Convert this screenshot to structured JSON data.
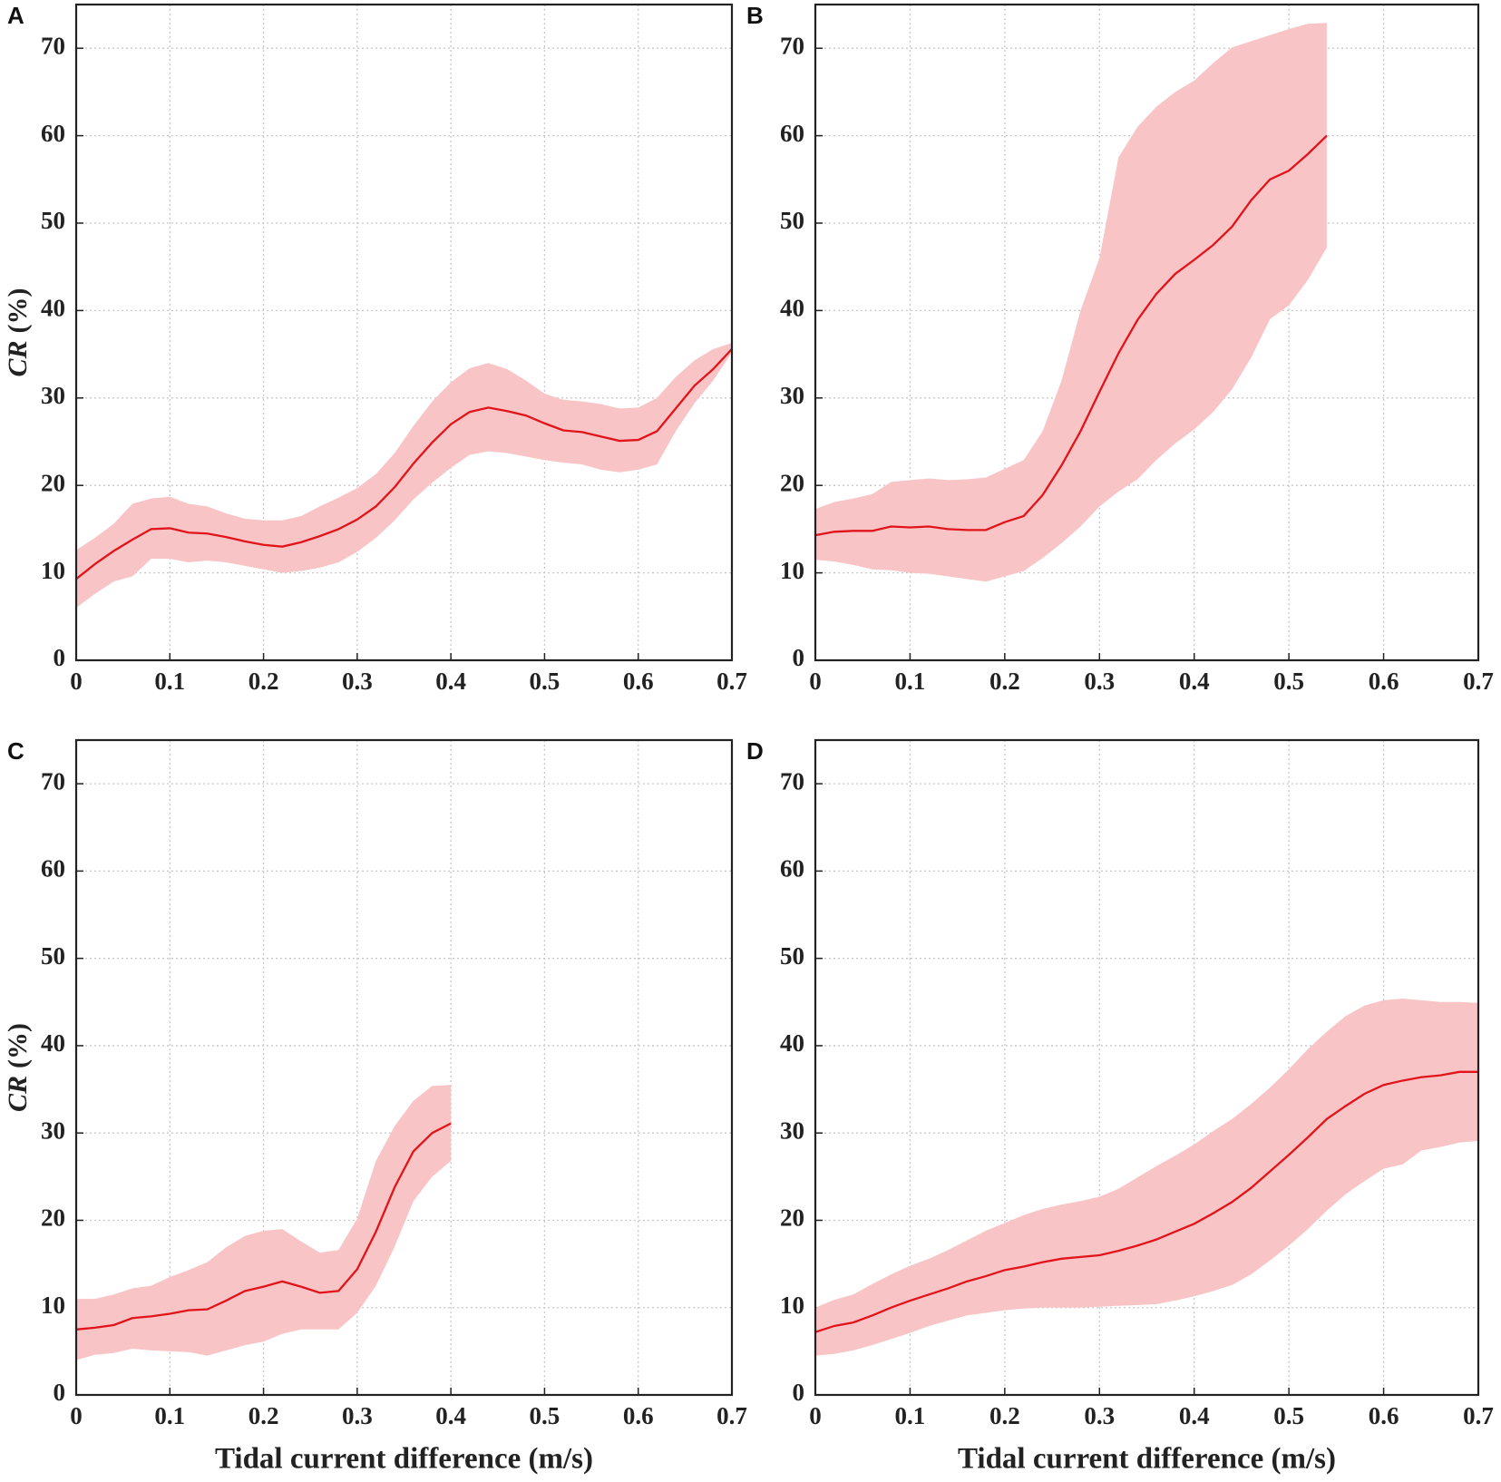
{
  "chart_data": [
    {
      "type": "line",
      "panel": "A",
      "ylabel": [
        "CR",
        "(%)"
      ],
      "xlim": [
        0,
        0.7
      ],
      "ylim": [
        0,
        75
      ],
      "xticks": [
        0,
        0.1,
        0.2,
        0.3,
        0.4,
        0.5,
        0.6,
        0.7
      ],
      "yticks": [
        0,
        10,
        20,
        30,
        40,
        50,
        60,
        70
      ],
      "grid": true,
      "x": [
        0,
        0.02,
        0.04,
        0.06,
        0.08,
        0.1,
        0.12,
        0.14,
        0.16,
        0.18,
        0.2,
        0.22,
        0.24,
        0.26,
        0.28,
        0.3,
        0.32,
        0.34,
        0.36,
        0.38,
        0.4,
        0.42,
        0.44,
        0.46,
        0.48,
        0.5,
        0.52,
        0.54,
        0.56,
        0.58,
        0.6,
        0.62,
        0.64,
        0.66,
        0.68,
        0.7
      ],
      "series": [
        {
          "color": "#e0141a",
          "band_color": "#f9c4c6",
          "values": [
            9.3,
            11,
            12.5,
            13.8,
            15,
            15.1,
            14.6,
            14.5,
            14.1,
            13.6,
            13.2,
            13,
            13.5,
            14.2,
            15,
            16.1,
            17.6,
            19.8,
            22.5,
            24.9,
            27,
            28.4,
            28.9,
            28.5,
            28,
            27.1,
            26.3,
            26.1,
            25.6,
            25.1,
            25.2,
            26.2,
            28.8,
            31.4,
            33.3,
            35.6
          ],
          "upper": [
            12.6,
            14,
            15.6,
            17.9,
            18.5,
            18.7,
            17.9,
            17.6,
            16.8,
            16.2,
            16,
            16,
            16.5,
            17.6,
            18.6,
            19.7,
            21.3,
            23.7,
            26.8,
            29.6,
            31.8,
            33.4,
            34,
            33.3,
            32,
            30.5,
            29.8,
            29.6,
            29.3,
            28.8,
            28.9,
            30,
            32.4,
            34.3,
            35.6,
            36.3
          ],
          "lower": [
            6,
            7.6,
            9,
            9.6,
            11.6,
            11.6,
            11.2,
            11.4,
            11.2,
            10.8,
            10.4,
            10,
            10.2,
            10.6,
            11.2,
            12.4,
            14,
            16,
            18.4,
            20.3,
            22,
            23.5,
            23.9,
            23.7,
            23.3,
            22.9,
            22.6,
            22.4,
            21.8,
            21.5,
            21.8,
            22.4,
            26.2,
            29.4,
            32,
            35.2
          ]
        }
      ]
    },
    {
      "type": "line",
      "panel": "B",
      "xlim": [
        0,
        0.7
      ],
      "ylim": [
        0,
        75
      ],
      "xticks": [
        0,
        0.1,
        0.2,
        0.3,
        0.4,
        0.5,
        0.6,
        0.7
      ],
      "yticks": [
        0,
        10,
        20,
        30,
        40,
        50,
        60,
        70
      ],
      "grid": true,
      "x": [
        0,
        0.02,
        0.04,
        0.06,
        0.08,
        0.1,
        0.12,
        0.14,
        0.16,
        0.18,
        0.2,
        0.22,
        0.24,
        0.26,
        0.28,
        0.3,
        0.32,
        0.34,
        0.36,
        0.38,
        0.4,
        0.42,
        0.44,
        0.46,
        0.48,
        0.5,
        0.52,
        0.54
      ],
      "series": [
        {
          "color": "#e0141a",
          "band_color": "#f9c4c6",
          "values": [
            14.3,
            14.7,
            14.8,
            14.8,
            15.3,
            15.2,
            15.3,
            15,
            14.9,
            14.9,
            15.8,
            16.5,
            18.9,
            22.3,
            26.2,
            30.7,
            35.1,
            38.9,
            41.9,
            44.2,
            45.8,
            47.5,
            49.6,
            52.6,
            55,
            56,
            57.9,
            60
          ],
          "upper": [
            17.3,
            18.1,
            18.5,
            19,
            20.4,
            20.6,
            20.8,
            20.6,
            20.7,
            20.9,
            21.9,
            22.9,
            26.2,
            32,
            40,
            46,
            57.5,
            61,
            63.3,
            65,
            66.3,
            68.3,
            70.1,
            70.8,
            71.5,
            72.2,
            72.8,
            72.9
          ],
          "lower": [
            11.5,
            11.3,
            10.9,
            10.4,
            10.3,
            10,
            9.9,
            9.6,
            9.3,
            9,
            9.6,
            10.2,
            11.7,
            13.4,
            15.3,
            17.6,
            19.3,
            20.7,
            22.9,
            24.8,
            26.4,
            28.4,
            31,
            34.6,
            39,
            40.6,
            43.5,
            47.2
          ]
        }
      ]
    },
    {
      "type": "line",
      "panel": "C",
      "ylabel": [
        "CR",
        "(%)"
      ],
      "xlabel": "Tidal current difference (m/s)",
      "xlim": [
        0,
        0.7
      ],
      "ylim": [
        0,
        75
      ],
      "xticks": [
        0,
        0.1,
        0.2,
        0.3,
        0.4,
        0.5,
        0.6,
        0.7
      ],
      "yticks": [
        0,
        10,
        20,
        30,
        40,
        50,
        60,
        70
      ],
      "grid": true,
      "x": [
        0,
        0.02,
        0.04,
        0.06,
        0.08,
        0.1,
        0.12,
        0.14,
        0.16,
        0.18,
        0.2,
        0.22,
        0.24,
        0.26,
        0.28,
        0.3,
        0.32,
        0.34,
        0.36,
        0.38,
        0.4
      ],
      "series": [
        {
          "color": "#e0141a",
          "band_color": "#f9c4c6",
          "values": [
            7.5,
            7.7,
            8,
            8.8,
            9,
            9.3,
            9.7,
            9.8,
            10.8,
            11.9,
            12.4,
            13,
            12.4,
            11.7,
            11.9,
            14.4,
            18.7,
            23.8,
            27.9,
            30,
            31.1
          ],
          "upper": [
            11,
            11,
            11.5,
            12.2,
            12.5,
            13.5,
            14.3,
            15.2,
            16.9,
            18.2,
            18.8,
            19,
            17.6,
            16.3,
            16.6,
            20.2,
            26.8,
            30.8,
            33.7,
            35.4,
            35.5
          ],
          "lower": [
            4,
            4.6,
            4.8,
            5.3,
            5.1,
            5,
            4.9,
            4.5,
            5.1,
            5.7,
            6.1,
            7,
            7.5,
            7.5,
            7.5,
            9.4,
            12.5,
            17,
            22.2,
            25,
            26.8
          ]
        }
      ]
    },
    {
      "type": "line",
      "panel": "D",
      "xlabel": "Tidal current difference (m/s)",
      "xlim": [
        0,
        0.7
      ],
      "ylim": [
        0,
        75
      ],
      "xticks": [
        0,
        0.1,
        0.2,
        0.3,
        0.4,
        0.5,
        0.6,
        0.7
      ],
      "yticks": [
        0,
        10,
        20,
        30,
        40,
        50,
        60,
        70
      ],
      "grid": true,
      "x": [
        0,
        0.02,
        0.04,
        0.06,
        0.08,
        0.1,
        0.12,
        0.14,
        0.16,
        0.18,
        0.2,
        0.22,
        0.24,
        0.26,
        0.28,
        0.3,
        0.32,
        0.34,
        0.36,
        0.38,
        0.4,
        0.42,
        0.44,
        0.46,
        0.48,
        0.5,
        0.52,
        0.54,
        0.56,
        0.58,
        0.6,
        0.62,
        0.64,
        0.66,
        0.68,
        0.7
      ],
      "series": [
        {
          "color": "#e0141a",
          "band_color": "#f9c4c6",
          "values": [
            7.2,
            7.9,
            8.3,
            9.1,
            10,
            10.8,
            11.5,
            12.2,
            13,
            13.6,
            14.3,
            14.7,
            15.2,
            15.6,
            15.8,
            16,
            16.5,
            17.1,
            17.8,
            18.7,
            19.6,
            20.8,
            22.1,
            23.7,
            25.6,
            27.5,
            29.5,
            31.6,
            33.1,
            34.5,
            35.5,
            36,
            36.4,
            36.6,
            37,
            37
          ],
          "upper": [
            10,
            10.9,
            11.5,
            12.7,
            13.8,
            14.8,
            15.6,
            16.6,
            17.7,
            18.8,
            19.7,
            20.6,
            21.3,
            21.8,
            22.2,
            22.7,
            23.6,
            24.9,
            26.2,
            27.4,
            28.7,
            30.2,
            31.6,
            33.3,
            35.2,
            37.3,
            39.6,
            41.6,
            43.4,
            44.6,
            45.2,
            45.4,
            45.2,
            45,
            45,
            44.9
          ],
          "lower": [
            4.5,
            4.7,
            5.1,
            5.7,
            6.4,
            7.1,
            7.9,
            8.5,
            9.1,
            9.4,
            9.7,
            9.9,
            10,
            10,
            10,
            10.1,
            10.2,
            10.3,
            10.4,
            10.8,
            11.3,
            11.9,
            12.6,
            13.8,
            15.4,
            17.1,
            19,
            21.1,
            23,
            24.5,
            25.9,
            26.4,
            28,
            28.4,
            28.9,
            29.1
          ]
        }
      ]
    }
  ]
}
